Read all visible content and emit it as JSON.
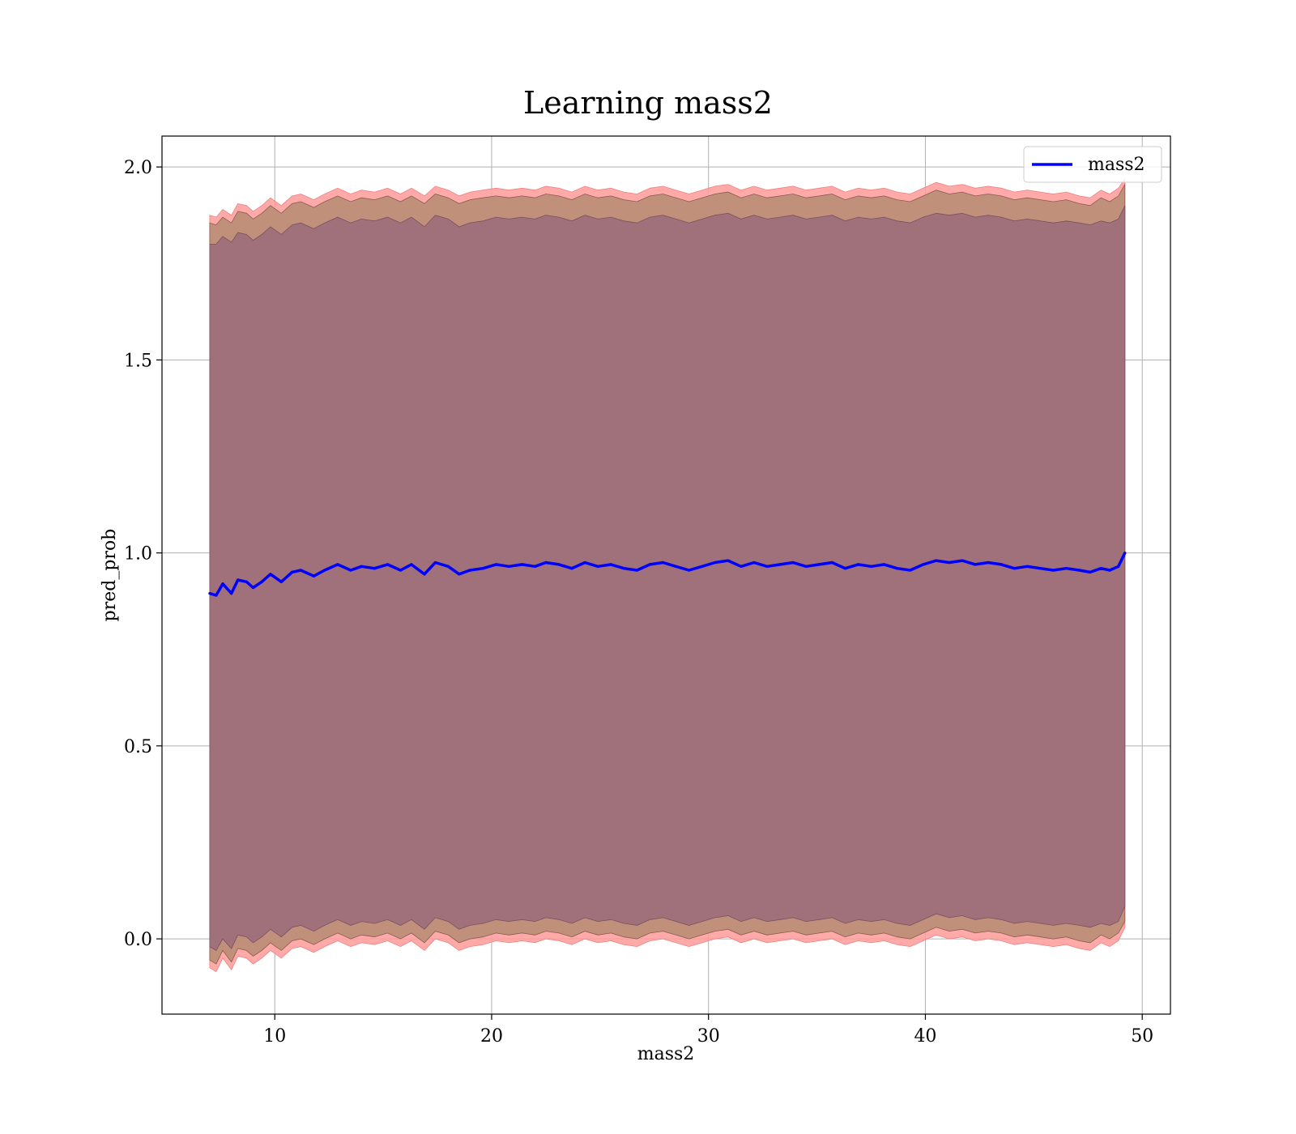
{
  "chart_data": {
    "type": "line",
    "title": "Learning mass2",
    "xlabel": "mass2",
    "ylabel": "pred_prob",
    "xlim": [
      4.8,
      51.3
    ],
    "ylim": [
      -0.195,
      2.08
    ],
    "xticks": [
      10,
      20,
      30,
      40,
      50
    ],
    "yticks": [
      0.0,
      0.5,
      1.0,
      1.5,
      2.0
    ],
    "xtick_labels": [
      "10",
      "20",
      "30",
      "40",
      "50"
    ],
    "ytick_labels": [
      "0.0",
      "0.5",
      "1.0",
      "1.5",
      "2.0"
    ],
    "grid": true,
    "legend": {
      "position": "top-right",
      "entries": [
        "mass2"
      ]
    },
    "colors": {
      "line": "#0000ff",
      "outer_band": "#ff9a9a",
      "inner_band": "#c0907a",
      "core_band": "#a0717a"
    },
    "series": [
      {
        "name": "mass2",
        "x": [
          7.0,
          7.3,
          7.6,
          8.0,
          8.3,
          8.7,
          9.0,
          9.4,
          9.8,
          10.3,
          10.8,
          11.2,
          11.8,
          12.3,
          12.9,
          13.5,
          14.0,
          14.6,
          15.2,
          15.8,
          16.3,
          16.9,
          17.4,
          18.0,
          18.5,
          19.0,
          19.6,
          20.2,
          20.8,
          21.4,
          22.0,
          22.5,
          23.1,
          23.7,
          24.3,
          24.9,
          25.5,
          26.1,
          26.7,
          27.3,
          27.9,
          28.5,
          29.1,
          29.7,
          30.3,
          30.9,
          31.5,
          32.1,
          32.7,
          33.3,
          33.9,
          34.5,
          35.1,
          35.7,
          36.3,
          36.9,
          37.5,
          38.1,
          38.7,
          39.3,
          39.9,
          40.5,
          41.1,
          41.7,
          42.3,
          42.9,
          43.5,
          44.1,
          44.7,
          45.3,
          45.9,
          46.5,
          47.1,
          47.6,
          48.1,
          48.5,
          48.9,
          49.2
        ],
        "mean": [
          0.895,
          0.89,
          0.92,
          0.895,
          0.93,
          0.925,
          0.91,
          0.925,
          0.945,
          0.925,
          0.95,
          0.955,
          0.94,
          0.955,
          0.97,
          0.955,
          0.965,
          0.96,
          0.97,
          0.955,
          0.97,
          0.945,
          0.975,
          0.965,
          0.945,
          0.955,
          0.96,
          0.97,
          0.965,
          0.97,
          0.965,
          0.975,
          0.97,
          0.96,
          0.975,
          0.965,
          0.97,
          0.96,
          0.955,
          0.97,
          0.975,
          0.965,
          0.955,
          0.965,
          0.975,
          0.98,
          0.965,
          0.975,
          0.965,
          0.97,
          0.975,
          0.965,
          0.97,
          0.975,
          0.96,
          0.97,
          0.965,
          0.97,
          0.96,
          0.955,
          0.97,
          0.98,
          0.975,
          0.98,
          0.97,
          0.975,
          0.97,
          0.96,
          0.965,
          0.96,
          0.955,
          0.96,
          0.955,
          0.95,
          0.96,
          0.955,
          0.965,
          1.0
        ],
        "band_outer_upper": [
          1.875,
          1.87,
          1.89,
          1.875,
          1.905,
          1.9,
          1.885,
          1.9,
          1.92,
          1.9,
          1.925,
          1.93,
          1.915,
          1.93,
          1.945,
          1.93,
          1.94,
          1.935,
          1.945,
          1.93,
          1.945,
          1.925,
          1.95,
          1.94,
          1.925,
          1.935,
          1.94,
          1.945,
          1.94,
          1.945,
          1.94,
          1.95,
          1.945,
          1.935,
          1.95,
          1.94,
          1.945,
          1.935,
          1.93,
          1.945,
          1.95,
          1.94,
          1.93,
          1.94,
          1.95,
          1.955,
          1.94,
          1.95,
          1.94,
          1.945,
          1.95,
          1.94,
          1.945,
          1.95,
          1.935,
          1.945,
          1.94,
          1.945,
          1.935,
          1.93,
          1.945,
          1.96,
          1.95,
          1.955,
          1.945,
          1.95,
          1.945,
          1.935,
          1.94,
          1.935,
          1.93,
          1.935,
          1.925,
          1.92,
          1.94,
          1.93,
          1.945,
          1.97
        ],
        "band_outer_lower": [
          -0.075,
          -0.085,
          -0.05,
          -0.08,
          -0.045,
          -0.05,
          -0.065,
          -0.05,
          -0.03,
          -0.05,
          -0.025,
          -0.02,
          -0.035,
          -0.02,
          -0.005,
          -0.02,
          -0.01,
          -0.015,
          -0.005,
          -0.02,
          -0.005,
          -0.03,
          0.0,
          -0.01,
          -0.03,
          -0.02,
          -0.015,
          -0.005,
          -0.01,
          -0.005,
          -0.01,
          0.0,
          -0.005,
          -0.015,
          0.0,
          -0.01,
          -0.005,
          -0.015,
          -0.02,
          -0.005,
          0.0,
          -0.01,
          -0.02,
          -0.01,
          0.0,
          0.005,
          -0.01,
          0.0,
          -0.01,
          -0.005,
          0.0,
          -0.01,
          -0.005,
          0.0,
          -0.015,
          -0.005,
          -0.01,
          -0.005,
          -0.015,
          -0.02,
          -0.005,
          0.01,
          0.0,
          0.005,
          -0.005,
          0.0,
          -0.005,
          -0.015,
          -0.01,
          -0.015,
          -0.02,
          -0.015,
          -0.025,
          -0.03,
          -0.01,
          -0.02,
          -0.005,
          0.03
        ],
        "band_inner_upper": [
          1.855,
          1.85,
          1.87,
          1.855,
          1.885,
          1.88,
          1.865,
          1.88,
          1.9,
          1.88,
          1.905,
          1.91,
          1.895,
          1.91,
          1.925,
          1.91,
          1.92,
          1.915,
          1.925,
          1.91,
          1.925,
          1.905,
          1.93,
          1.92,
          1.905,
          1.915,
          1.92,
          1.925,
          1.92,
          1.925,
          1.92,
          1.93,
          1.925,
          1.915,
          1.93,
          1.92,
          1.925,
          1.915,
          1.91,
          1.925,
          1.93,
          1.92,
          1.91,
          1.92,
          1.93,
          1.935,
          1.92,
          1.93,
          1.92,
          1.925,
          1.93,
          1.92,
          1.925,
          1.93,
          1.915,
          1.925,
          1.92,
          1.925,
          1.915,
          1.91,
          1.925,
          1.94,
          1.93,
          1.935,
          1.925,
          1.93,
          1.925,
          1.915,
          1.92,
          1.915,
          1.91,
          1.915,
          1.905,
          1.9,
          1.92,
          1.91,
          1.925,
          1.955
        ],
        "band_inner_lower": [
          -0.055,
          -0.065,
          -0.03,
          -0.06,
          -0.025,
          -0.03,
          -0.045,
          -0.03,
          -0.01,
          -0.03,
          -0.005,
          0.0,
          -0.015,
          0.0,
          0.015,
          0.0,
          0.01,
          0.005,
          0.015,
          0.0,
          0.015,
          -0.01,
          0.02,
          0.01,
          -0.01,
          0.0,
          0.005,
          0.015,
          0.01,
          0.015,
          0.01,
          0.02,
          0.015,
          0.005,
          0.02,
          0.01,
          0.015,
          0.005,
          0.0,
          0.015,
          0.02,
          0.01,
          0.0,
          0.01,
          0.02,
          0.025,
          0.01,
          0.02,
          0.01,
          0.015,
          0.02,
          0.01,
          0.015,
          0.02,
          0.005,
          0.015,
          0.01,
          0.015,
          0.005,
          0.0,
          0.015,
          0.03,
          0.02,
          0.025,
          0.015,
          0.02,
          0.015,
          0.005,
          0.01,
          0.005,
          0.0,
          0.005,
          -0.005,
          -0.01,
          0.01,
          0.0,
          0.015,
          0.045
        ],
        "band_core_upper": [
          1.8,
          1.8,
          1.82,
          1.805,
          1.83,
          1.825,
          1.81,
          1.825,
          1.845,
          1.825,
          1.85,
          1.855,
          1.84,
          1.855,
          1.87,
          1.855,
          1.865,
          1.86,
          1.87,
          1.855,
          1.87,
          1.845,
          1.875,
          1.865,
          1.845,
          1.855,
          1.86,
          1.87,
          1.865,
          1.87,
          1.865,
          1.875,
          1.87,
          1.86,
          1.875,
          1.865,
          1.87,
          1.86,
          1.855,
          1.87,
          1.875,
          1.865,
          1.855,
          1.865,
          1.875,
          1.88,
          1.865,
          1.875,
          1.865,
          1.87,
          1.875,
          1.865,
          1.87,
          1.875,
          1.86,
          1.87,
          1.865,
          1.87,
          1.86,
          1.855,
          1.87,
          1.88,
          1.875,
          1.88,
          1.87,
          1.875,
          1.87,
          1.86,
          1.865,
          1.86,
          1.855,
          1.86,
          1.855,
          1.85,
          1.86,
          1.855,
          1.865,
          1.9
        ],
        "band_core_lower": [
          -0.02,
          -0.03,
          0.0,
          -0.025,
          0.01,
          0.005,
          -0.01,
          0.005,
          0.025,
          0.005,
          0.03,
          0.035,
          0.02,
          0.035,
          0.05,
          0.035,
          0.045,
          0.04,
          0.05,
          0.035,
          0.05,
          0.025,
          0.055,
          0.045,
          0.025,
          0.035,
          0.04,
          0.05,
          0.045,
          0.05,
          0.045,
          0.055,
          0.05,
          0.04,
          0.055,
          0.045,
          0.05,
          0.04,
          0.035,
          0.05,
          0.055,
          0.045,
          0.035,
          0.045,
          0.055,
          0.06,
          0.045,
          0.055,
          0.045,
          0.05,
          0.055,
          0.045,
          0.05,
          0.055,
          0.04,
          0.05,
          0.045,
          0.05,
          0.04,
          0.035,
          0.05,
          0.065,
          0.055,
          0.06,
          0.05,
          0.055,
          0.05,
          0.04,
          0.045,
          0.04,
          0.035,
          0.04,
          0.035,
          0.03,
          0.04,
          0.035,
          0.045,
          0.085
        ]
      }
    ]
  }
}
